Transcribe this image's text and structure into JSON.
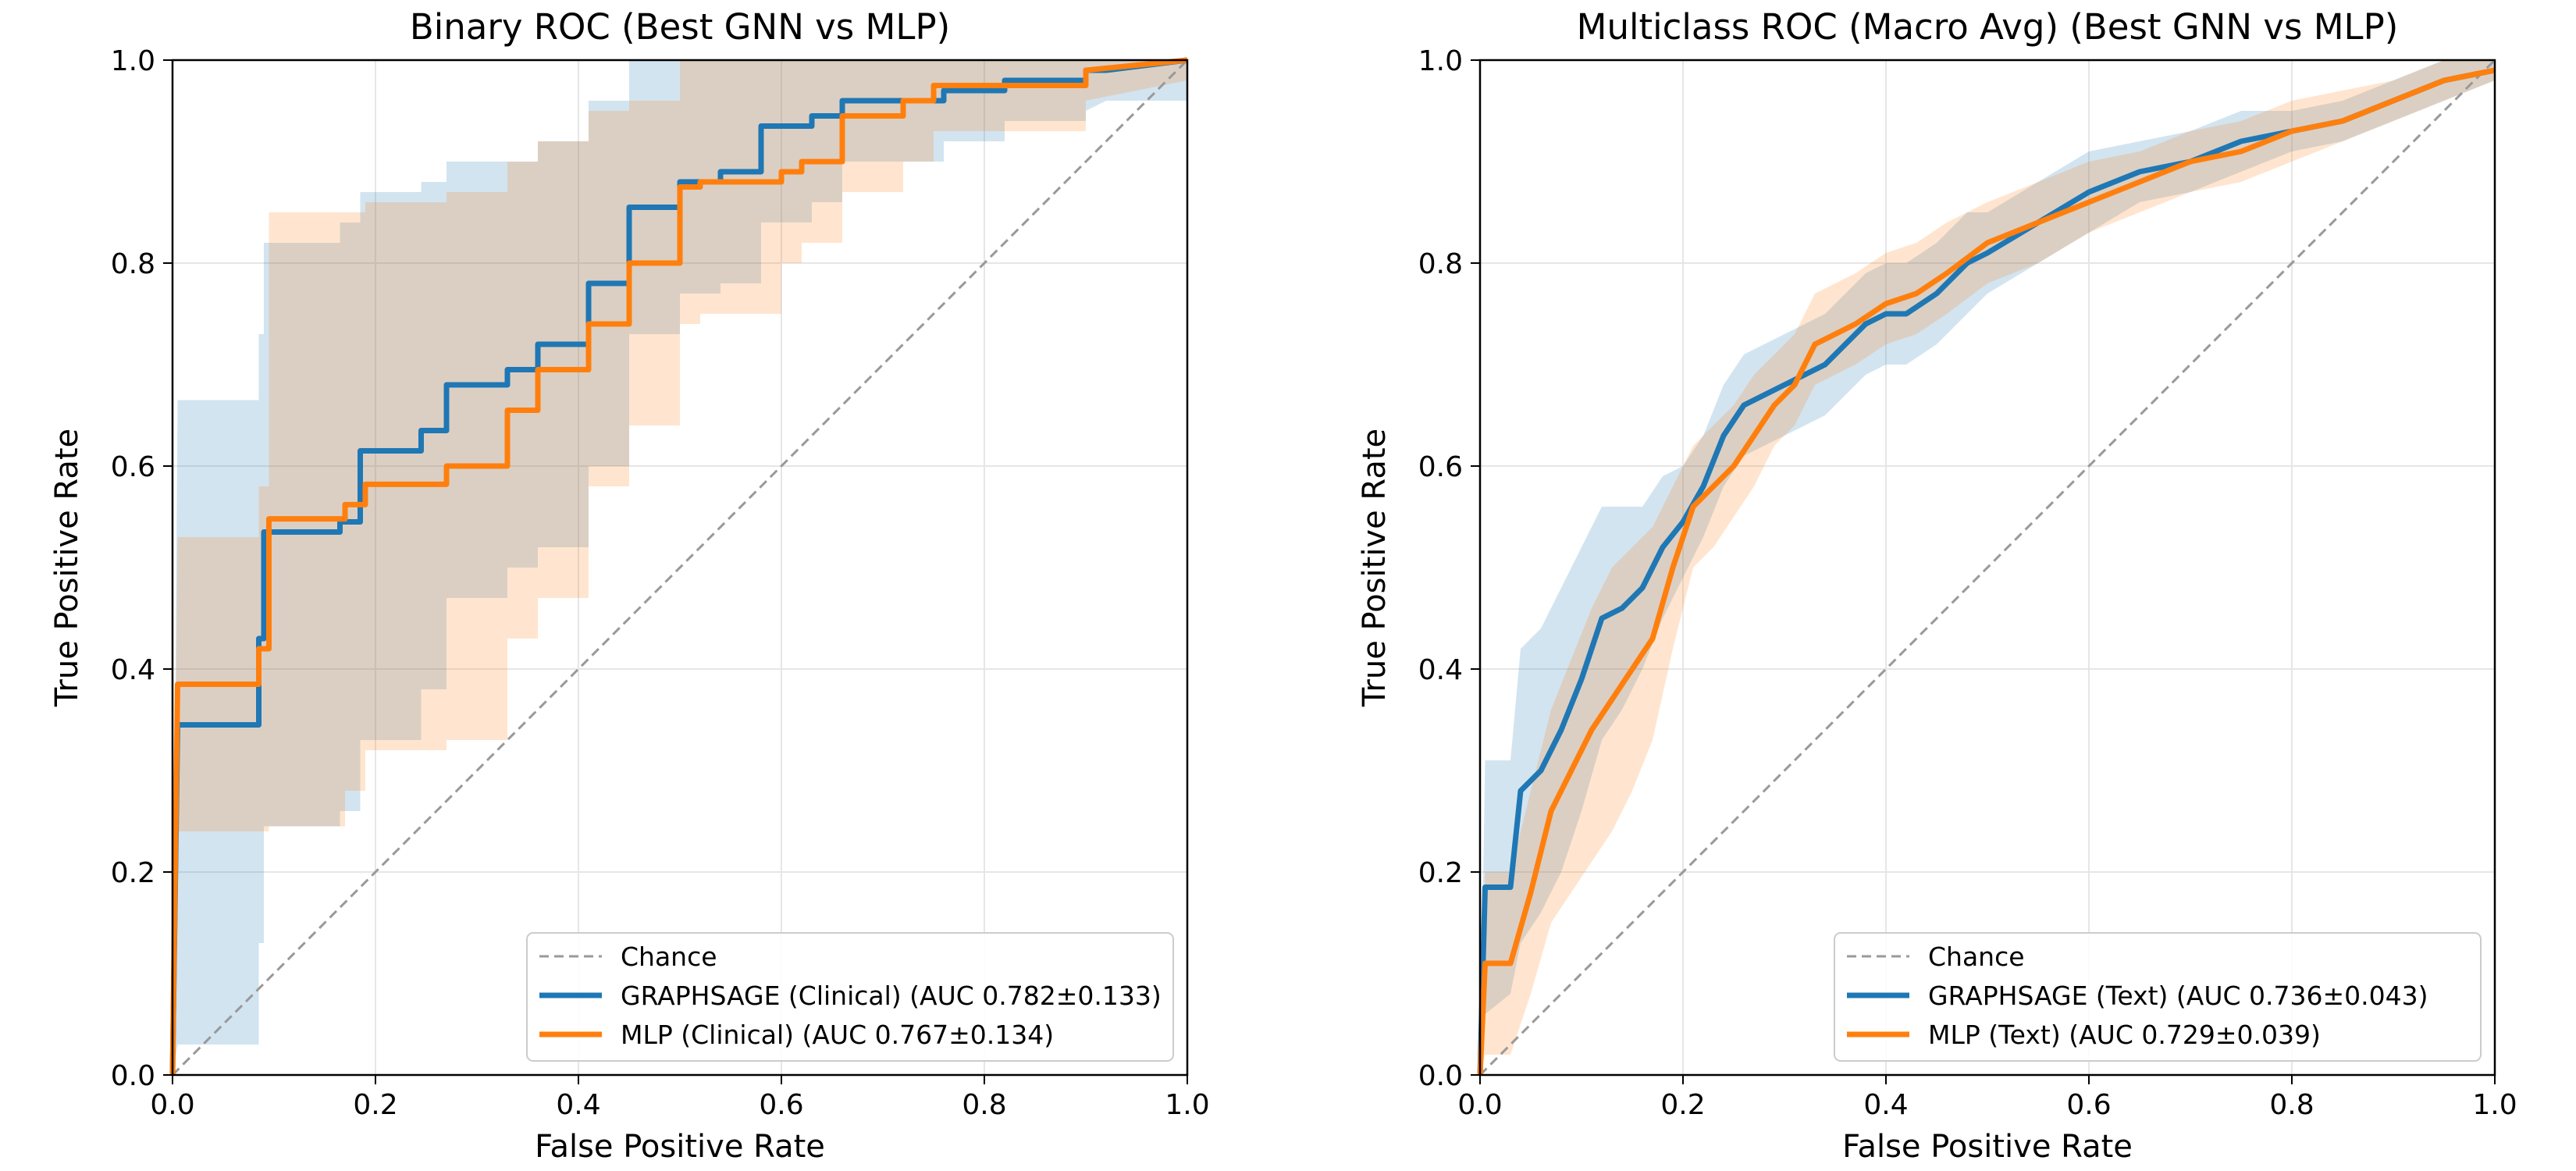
{
  "colors": {
    "gnn": "#1f77b4",
    "mlp": "#ff7f0e",
    "chance": "#999999",
    "grid": "#e6e6e6"
  },
  "chart_data": [
    {
      "type": "line",
      "title": "Binary ROC (Best GNN vs MLP)",
      "xlabel": "False Positive Rate",
      "ylabel": "True Positive Rate",
      "xlim": [
        0,
        1
      ],
      "ylim": [
        0,
        1
      ],
      "xticks": [
        "0.0",
        "0.2",
        "0.4",
        "0.6",
        "0.8",
        "1.0"
      ],
      "yticks": [
        "0.0",
        "0.2",
        "0.4",
        "0.6",
        "0.8",
        "1.0"
      ],
      "grid": true,
      "legend_position": "lower-right",
      "legend": [
        "Chance",
        "GRAPHSAGE (Clinical) (AUC 0.782±0.133)",
        "MLP (Clinical) (AUC 0.767±0.134)"
      ],
      "series": [
        {
          "name": "GRAPHSAGE (Clinical) (AUC 0.782±0.133)",
          "color_key": "gnn",
          "x": [
            0,
            0.005,
            0.085,
            0.085,
            0.09,
            0.09,
            0.165,
            0.165,
            0.185,
            0.185,
            0.245,
            0.245,
            0.27,
            0.27,
            0.33,
            0.33,
            0.36,
            0.36,
            0.41,
            0.41,
            0.45,
            0.45,
            0.5,
            0.5,
            0.54,
            0.54,
            0.58,
            0.58,
            0.63,
            0.63,
            0.66,
            0.66,
            0.76,
            0.76,
            0.82,
            0.82,
            0.9,
            0.9,
            0.92,
            1
          ],
          "y": [
            0,
            0.345,
            0.345,
            0.43,
            0.43,
            0.535,
            0.535,
            0.545,
            0.545,
            0.615,
            0.615,
            0.635,
            0.635,
            0.68,
            0.68,
            0.695,
            0.695,
            0.72,
            0.72,
            0.78,
            0.78,
            0.855,
            0.855,
            0.88,
            0.88,
            0.89,
            0.89,
            0.935,
            0.935,
            0.945,
            0.945,
            0.96,
            0.96,
            0.97,
            0.97,
            0.98,
            0.98,
            0.99,
            0.99,
            1.0
          ],
          "band_lower": [
            0,
            0.03,
            0.03,
            0.13,
            0.13,
            0.245,
            0.245,
            0.26,
            0.26,
            0.33,
            0.33,
            0.38,
            0.38,
            0.47,
            0.47,
            0.5,
            0.5,
            0.52,
            0.52,
            0.6,
            0.6,
            0.73,
            0.73,
            0.77,
            0.77,
            0.78,
            0.78,
            0.84,
            0.84,
            0.86,
            0.86,
            0.9,
            0.9,
            0.92,
            0.92,
            0.94,
            0.94,
            0.95,
            0.96,
            0.96
          ],
          "band_upper": [
            0,
            0.665,
            0.665,
            0.73,
            0.73,
            0.82,
            0.82,
            0.84,
            0.84,
            0.87,
            0.87,
            0.88,
            0.88,
            0.9,
            0.9,
            0.9,
            0.9,
            0.92,
            0.92,
            0.96,
            0.96,
            1.0,
            1.0,
            1.0,
            1.0,
            1.0,
            1.0,
            1.0,
            1.0,
            1.0,
            1.0,
            1.0,
            1.0,
            1.0,
            1.0,
            1.0,
            1.0,
            1.0,
            1.0,
            1.0
          ]
        },
        {
          "name": "MLP (Clinical) (AUC 0.767±0.134)",
          "color_key": "mlp",
          "x": [
            0,
            0.005,
            0.085,
            0.085,
            0.095,
            0.095,
            0.17,
            0.17,
            0.19,
            0.19,
            0.27,
            0.27,
            0.33,
            0.33,
            0.36,
            0.36,
            0.41,
            0.41,
            0.45,
            0.45,
            0.5,
            0.5,
            0.52,
            0.52,
            0.6,
            0.6,
            0.62,
            0.62,
            0.66,
            0.66,
            0.72,
            0.72,
            0.75,
            0.75,
            0.9,
            0.9,
            1
          ],
          "y": [
            0,
            0.385,
            0.385,
            0.42,
            0.42,
            0.548,
            0.548,
            0.562,
            0.562,
            0.582,
            0.582,
            0.6,
            0.6,
            0.655,
            0.655,
            0.695,
            0.695,
            0.74,
            0.74,
            0.8,
            0.8,
            0.875,
            0.875,
            0.88,
            0.88,
            0.89,
            0.89,
            0.9,
            0.9,
            0.945,
            0.945,
            0.96,
            0.96,
            0.975,
            0.975,
            0.99,
            1.0
          ],
          "band_lower": [
            0,
            0.24,
            0.24,
            0.24,
            0.24,
            0.245,
            0.245,
            0.28,
            0.28,
            0.32,
            0.32,
            0.33,
            0.33,
            0.43,
            0.43,
            0.47,
            0.47,
            0.58,
            0.58,
            0.64,
            0.64,
            0.74,
            0.74,
            0.75,
            0.75,
            0.8,
            0.8,
            0.82,
            0.82,
            0.87,
            0.87,
            0.9,
            0.9,
            0.93,
            0.93,
            0.96,
            0.98
          ],
          "band_upper": [
            0,
            0.53,
            0.53,
            0.58,
            0.58,
            0.85,
            0.85,
            0.85,
            0.85,
            0.86,
            0.86,
            0.87,
            0.87,
            0.9,
            0.9,
            0.92,
            0.92,
            0.95,
            0.95,
            0.96,
            0.96,
            1.0,
            1.0,
            1.0,
            1.0,
            1.0,
            1.0,
            1.0,
            1.0,
            1.0,
            1.0,
            1.0,
            1.0,
            1.0,
            1.0,
            1.0,
            1.0
          ]
        }
      ]
    },
    {
      "type": "line",
      "title": "Multiclass ROC (Macro Avg) (Best GNN vs MLP)",
      "xlabel": "False Positive Rate",
      "ylabel": "True Positive Rate",
      "xlim": [
        0,
        1
      ],
      "ylim": [
        0,
        1
      ],
      "xticks": [
        "0.0",
        "0.2",
        "0.4",
        "0.6",
        "0.8",
        "1.0"
      ],
      "yticks": [
        "0.0",
        "0.2",
        "0.4",
        "0.6",
        "0.8",
        "1.0"
      ],
      "grid": true,
      "legend_position": "lower-right",
      "legend": [
        "Chance",
        "GRAPHSAGE (Text) (AUC 0.736±0.043)",
        "MLP (Text) (AUC 0.729±0.039)"
      ],
      "series": [
        {
          "name": "GRAPHSAGE (Text) (AUC 0.736±0.043)",
          "color_key": "gnn",
          "x": [
            0,
            0.005,
            0.03,
            0.04,
            0.06,
            0.08,
            0.1,
            0.12,
            0.14,
            0.16,
            0.18,
            0.2,
            0.22,
            0.24,
            0.26,
            0.28,
            0.3,
            0.32,
            0.34,
            0.36,
            0.38,
            0.4,
            0.42,
            0.45,
            0.48,
            0.5,
            0.55,
            0.6,
            0.65,
            0.7,
            0.75,
            0.8,
            0.85,
            0.9,
            0.95,
            1
          ],
          "y": [
            0,
            0.185,
            0.185,
            0.28,
            0.3,
            0.34,
            0.39,
            0.45,
            0.46,
            0.48,
            0.52,
            0.545,
            0.58,
            0.63,
            0.66,
            0.67,
            0.68,
            0.69,
            0.7,
            0.72,
            0.74,
            0.75,
            0.75,
            0.77,
            0.8,
            0.81,
            0.84,
            0.87,
            0.89,
            0.9,
            0.92,
            0.93,
            0.94,
            0.96,
            0.98,
            0.99
          ],
          "band_lower": [
            0,
            0.06,
            0.08,
            0.13,
            0.16,
            0.2,
            0.26,
            0.33,
            0.36,
            0.4,
            0.45,
            0.49,
            0.53,
            0.58,
            0.61,
            0.62,
            0.63,
            0.64,
            0.65,
            0.67,
            0.69,
            0.7,
            0.7,
            0.72,
            0.75,
            0.77,
            0.8,
            0.83,
            0.86,
            0.87,
            0.89,
            0.91,
            0.92,
            0.94,
            0.96,
            0.98
          ],
          "band_upper": [
            0,
            0.31,
            0.31,
            0.42,
            0.44,
            0.48,
            0.52,
            0.56,
            0.56,
            0.56,
            0.59,
            0.6,
            0.63,
            0.68,
            0.71,
            0.72,
            0.73,
            0.74,
            0.75,
            0.77,
            0.79,
            0.8,
            0.8,
            0.82,
            0.85,
            0.85,
            0.88,
            0.91,
            0.92,
            0.93,
            0.95,
            0.95,
            0.96,
            0.98,
            1.0,
            1.0
          ]
        },
        {
          "name": "MLP (Text) (AUC 0.729±0.039)",
          "color_key": "mlp",
          "x": [
            0,
            0.005,
            0.03,
            0.05,
            0.07,
            0.09,
            0.11,
            0.13,
            0.15,
            0.17,
            0.19,
            0.21,
            0.23,
            0.25,
            0.27,
            0.29,
            0.31,
            0.33,
            0.35,
            0.37,
            0.4,
            0.43,
            0.46,
            0.5,
            0.55,
            0.6,
            0.65,
            0.7,
            0.75,
            0.8,
            0.85,
            0.9,
            0.95,
            1
          ],
          "y": [
            0,
            0.11,
            0.11,
            0.18,
            0.26,
            0.3,
            0.34,
            0.37,
            0.4,
            0.43,
            0.5,
            0.56,
            0.58,
            0.6,
            0.63,
            0.66,
            0.68,
            0.72,
            0.73,
            0.74,
            0.76,
            0.77,
            0.79,
            0.82,
            0.84,
            0.86,
            0.88,
            0.9,
            0.91,
            0.93,
            0.94,
            0.96,
            0.98,
            0.99
          ],
          "band_lower": [
            0,
            0.02,
            0.02,
            0.08,
            0.15,
            0.18,
            0.21,
            0.24,
            0.28,
            0.33,
            0.42,
            0.5,
            0.52,
            0.55,
            0.58,
            0.62,
            0.64,
            0.68,
            0.69,
            0.7,
            0.72,
            0.73,
            0.75,
            0.78,
            0.8,
            0.83,
            0.85,
            0.87,
            0.88,
            0.9,
            0.92,
            0.94,
            0.96,
            0.98
          ],
          "band_upper": [
            0,
            0.2,
            0.2,
            0.28,
            0.36,
            0.41,
            0.46,
            0.5,
            0.52,
            0.54,
            0.58,
            0.62,
            0.64,
            0.66,
            0.69,
            0.71,
            0.73,
            0.77,
            0.78,
            0.79,
            0.81,
            0.82,
            0.84,
            0.86,
            0.88,
            0.9,
            0.91,
            0.93,
            0.94,
            0.96,
            0.97,
            0.98,
            1.0,
            1.0
          ]
        }
      ]
    }
  ]
}
